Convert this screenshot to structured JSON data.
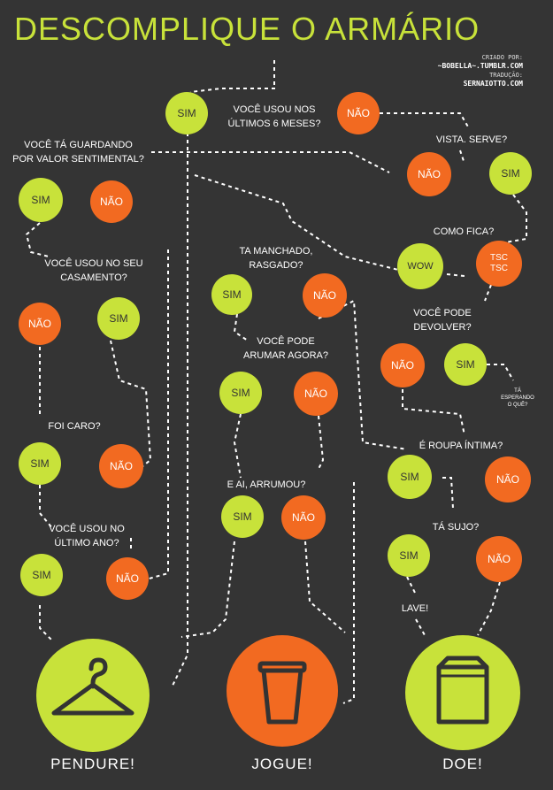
{
  "title": "DESCOMPLIQUE O ARMÁRIO",
  "credits": {
    "created_by_label": "CRIADO POR:",
    "created_by": "~BOBELLA~.TUMBLR.COM",
    "translation_label": "TRADUÇÃO:",
    "translation_by": "SERNAIOTTO.COM"
  },
  "colors": {
    "background": "#343434",
    "yes": "#c8e23a",
    "no": "#f26a21",
    "line": "#ffffff"
  },
  "questions": {
    "q1": [
      "VOCÊ USOU NOS",
      "ÚLTIMOS 6 MESES?"
    ],
    "q2": [
      "VOCÊ TÁ GUARDANDO",
      "POR VALOR SENTIMENTAL?"
    ],
    "q3": [
      "VISTA. SERVE?"
    ],
    "q4": [
      "VOCÊ USOU NO SEU",
      "CASAMENTO?"
    ],
    "q5": [
      "TA MANCHADO,",
      "RASGADO?"
    ],
    "q6": [
      "COMO FICA?"
    ],
    "q7": [
      "VOCÊ PODE",
      "DEVOLVER?"
    ],
    "q8": [
      "VOCÊ PODE",
      "ARUMAR AGORA?"
    ],
    "q9": [
      "FOI CARO?"
    ],
    "q10": [
      "É ROUPA ÍNTIMA?"
    ],
    "q11": [
      "E AI, ARRUMOU?"
    ],
    "q12": [
      "VOCÊ USOU NO",
      "ÚLTIMO ANO?"
    ],
    "q13": [
      "TÁ SUJO?"
    ],
    "aside": [
      "TÁ",
      "ESPERANDO",
      "O QUÊ?"
    ],
    "wash": [
      "LAVE!"
    ]
  },
  "answers": {
    "sim": "SIM",
    "nao": "NÃO",
    "wow": "WOW",
    "tsc": [
      "TSC",
      "TSC"
    ]
  },
  "outcomes": {
    "keep": {
      "label": "PENDURE!",
      "icon": "hanger-icon"
    },
    "trash": {
      "label": "JOGUE!",
      "icon": "trash-cup-icon"
    },
    "donate": {
      "label": "DOE!",
      "icon": "donation-box-icon"
    }
  }
}
